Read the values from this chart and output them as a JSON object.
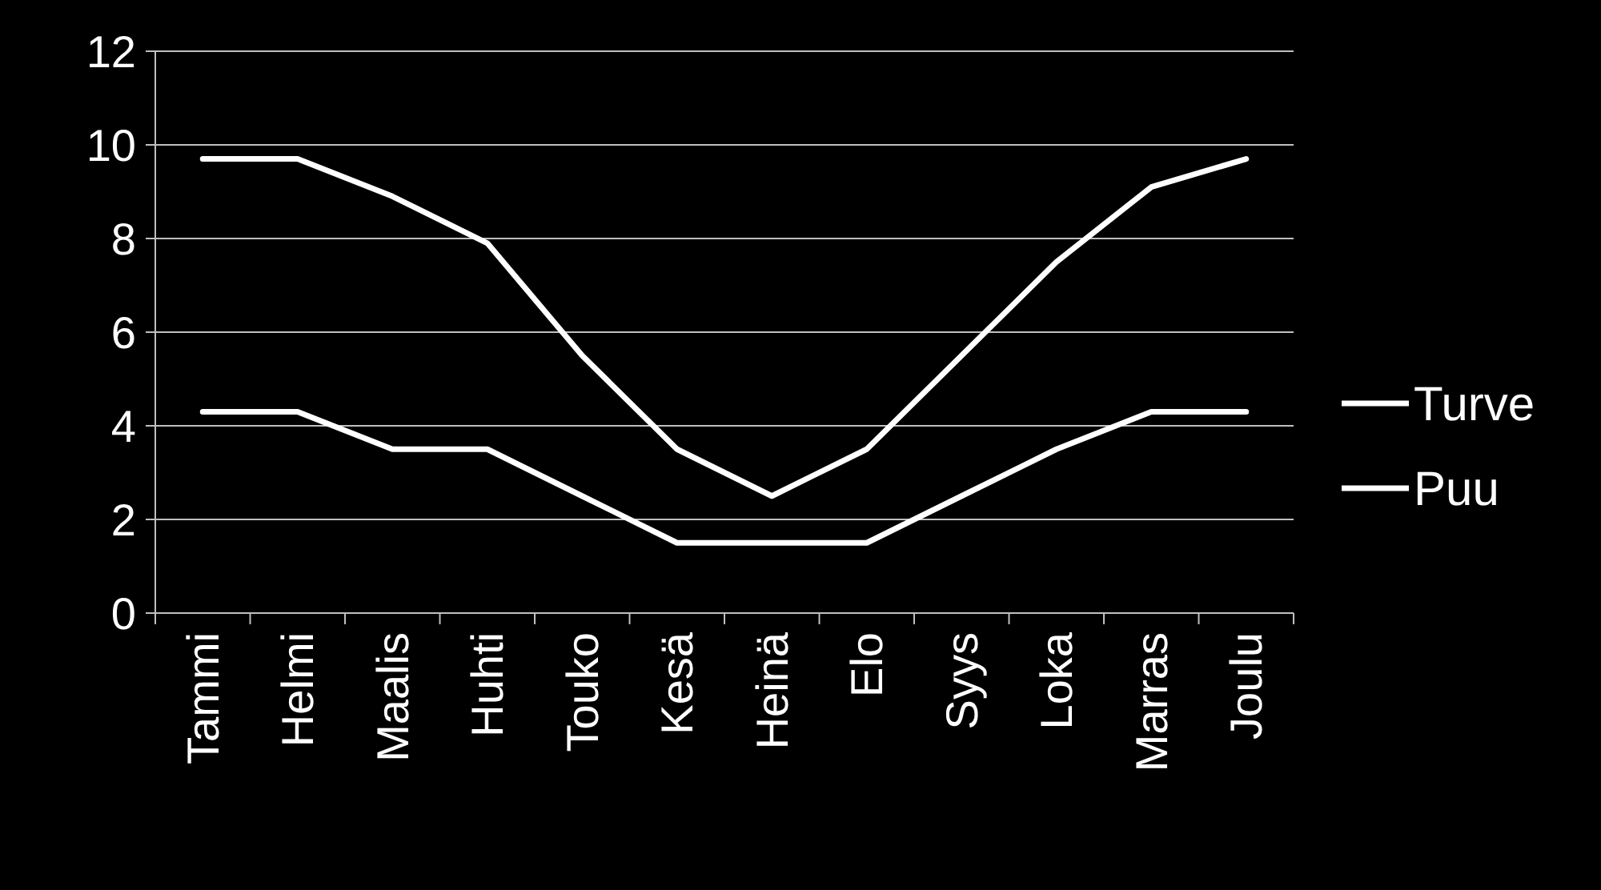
{
  "chart_data": {
    "type": "line",
    "categories": [
      "Tammi",
      "Helmi",
      "Maalis",
      "Huhti",
      "Touko",
      "Kesä",
      "Heinä",
      "Elo",
      "Syys",
      "Loka",
      "Marras",
      "Joulu"
    ],
    "series": [
      {
        "name": "Turve",
        "color": "#ffffff",
        "values": [
          9.7,
          9.7,
          8.9,
          7.9,
          5.5,
          3.5,
          2.5,
          3.5,
          5.5,
          7.5,
          9.1,
          9.7
        ]
      },
      {
        "name": "Puu",
        "color": "#ffffff",
        "values": [
          4.3,
          4.3,
          3.5,
          3.5,
          2.5,
          1.5,
          1.5,
          1.5,
          2.5,
          3.5,
          4.3,
          4.3
        ]
      }
    ],
    "ylim": [
      0,
      12
    ],
    "yticks": [
      0,
      2,
      4,
      6,
      8,
      10,
      12
    ],
    "grid": "y",
    "legend": "right",
    "marker": "none",
    "line_style": "solid"
  }
}
